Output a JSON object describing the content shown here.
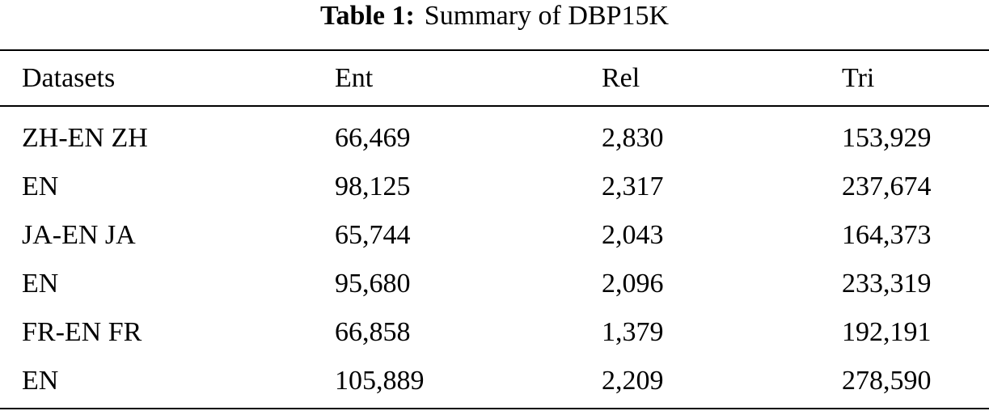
{
  "caption": {
    "label": "Table 1:",
    "text": "Summary of DBP15K"
  },
  "table": {
    "headers": [
      "Datasets",
      "Ent",
      "Rel",
      "Tri"
    ],
    "rows": [
      [
        "ZH-EN ZH",
        "66,469",
        "2,830",
        "153,929"
      ],
      [
        "EN",
        "98,125",
        "2,317",
        "237,674"
      ],
      [
        "JA-EN JA",
        "65,744",
        "2,043",
        "164,373"
      ],
      [
        "EN",
        "95,680",
        "2,096",
        "233,319"
      ],
      [
        "FR-EN FR",
        "66,858",
        "1,379",
        "192,191"
      ],
      [
        "EN",
        "105,889",
        "2,209",
        "278,590"
      ]
    ]
  }
}
